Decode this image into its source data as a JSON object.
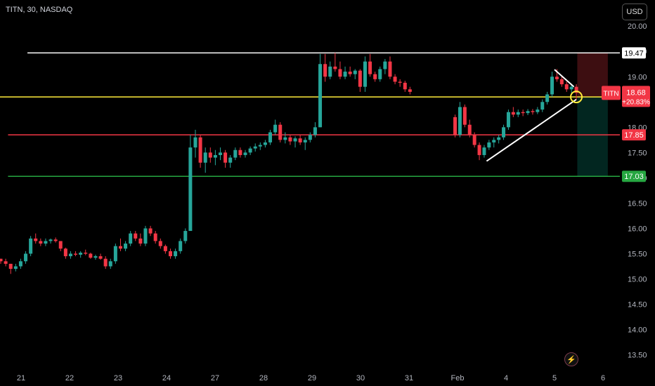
{
  "header": {
    "title": "TITN, 30, NASDAQ",
    "currency_button": "USD"
  },
  "chart_data": {
    "type": "candlestick",
    "symbol": "TITN",
    "interval": "30",
    "exchange": "NASDAQ",
    "ylim": [
      13.3,
      20.1
    ],
    "y_ticks": [
      "13.50",
      "14.00",
      "14.50",
      "15.00",
      "15.50",
      "16.00",
      "16.50",
      "17.00",
      "17.50",
      "18.00",
      "18.50",
      "19.00",
      "19.50",
      "20.00"
    ],
    "x_ticks": [
      "21",
      "22",
      "23",
      "24",
      "27",
      "28",
      "29",
      "30",
      "31",
      "Feb",
      "4",
      "5",
      "6"
    ],
    "last_price": {
      "symbol": "TITN",
      "value": "18.68",
      "change": "+20.83%",
      "price": 18.68,
      "color": "#f23645"
    },
    "horizontal_lines": [
      {
        "label": "19.47",
        "value": 19.47,
        "color": "#ffffff",
        "text_color": "#000000",
        "start_day": 0.45
      },
      {
        "label": "17.85",
        "value": 17.85,
        "color": "#f23645",
        "text_color": "#ffffff",
        "start_day": 0.05
      },
      {
        "label": "17.03",
        "value": 17.03,
        "color": "#26a641",
        "text_color": "#ffffff",
        "start_day": 0.05
      }
    ],
    "yellow_line": {
      "value": 18.6,
      "color": "#ffeb3b"
    },
    "risk_reward": {
      "start_day": 11.47,
      "end_day": 12.1,
      "entry": 18.6,
      "stop": 19.47,
      "target": 17.03
    },
    "trendlines": [
      {
        "d1": 9.6,
        "p1": 17.33,
        "d2": 11.45,
        "p2": 18.55,
        "color": "#ffffff"
      },
      {
        "d1": 11.0,
        "p1": 19.14,
        "d2": 11.4,
        "p2": 18.8,
        "color": "#ffffff"
      }
    ],
    "marker": {
      "day": 11.45,
      "price": 18.6,
      "color": "#ffeb3b"
    },
    "colors": {
      "up": "#26a69a",
      "down": "#f23645"
    },
    "candles": [
      [
        15.4,
        15.4,
        15.3,
        15.35
      ],
      [
        15.35,
        15.4,
        15.25,
        15.3
      ],
      [
        15.3,
        15.3,
        15.1,
        15.2
      ],
      [
        15.2,
        15.3,
        15.15,
        15.25
      ],
      [
        15.25,
        15.4,
        15.2,
        15.35
      ],
      [
        15.35,
        15.55,
        15.3,
        15.5
      ],
      [
        15.5,
        15.85,
        15.45,
        15.8
      ],
      [
        15.8,
        15.9,
        15.7,
        15.75
      ],
      [
        15.75,
        15.8,
        15.65,
        15.7
      ],
      [
        15.7,
        15.8,
        15.65,
        15.75
      ],
      [
        15.75,
        15.8,
        15.7,
        15.78
      ],
      [
        15.78,
        15.82,
        15.72,
        15.75
      ],
      [
        15.75,
        15.75,
        15.55,
        15.6
      ],
      [
        15.6,
        15.62,
        15.4,
        15.45
      ],
      [
        15.45,
        15.55,
        15.4,
        15.5
      ],
      [
        15.5,
        15.55,
        15.45,
        15.48
      ],
      [
        15.48,
        15.55,
        15.42,
        15.52
      ],
      [
        15.52,
        15.58,
        15.47,
        15.5
      ],
      [
        15.5,
        15.52,
        15.4,
        15.42
      ],
      [
        15.42,
        15.48,
        15.38,
        15.45
      ],
      [
        15.45,
        15.5,
        15.38,
        15.4
      ],
      [
        15.4,
        15.45,
        15.2,
        15.25
      ],
      [
        15.25,
        15.4,
        15.2,
        15.35
      ],
      [
        15.35,
        15.7,
        15.3,
        15.65
      ],
      [
        15.65,
        15.8,
        15.55,
        15.6
      ],
      [
        15.6,
        15.75,
        15.55,
        15.7
      ],
      [
        15.7,
        15.95,
        15.65,
        15.9
      ],
      [
        15.9,
        15.95,
        15.75,
        15.8
      ],
      [
        15.8,
        15.9,
        15.65,
        15.7
      ],
      [
        15.7,
        16.05,
        15.65,
        16.0
      ],
      [
        16.0,
        16.05,
        15.85,
        15.9
      ],
      [
        15.9,
        15.95,
        15.7,
        15.75
      ],
      [
        15.75,
        15.8,
        15.6,
        15.65
      ],
      [
        15.65,
        15.68,
        15.5,
        15.55
      ],
      [
        15.55,
        15.6,
        15.4,
        15.45
      ],
      [
        15.45,
        15.6,
        15.4,
        15.55
      ],
      [
        15.55,
        15.8,
        15.5,
        15.75
      ],
      [
        15.75,
        16.0,
        15.7,
        15.95
      ],
      [
        15.95,
        17.85,
        15.95,
        17.6
      ],
      [
        17.6,
        17.95,
        17.4,
        17.8
      ],
      [
        17.8,
        17.85,
        17.2,
        17.3
      ],
      [
        17.3,
        17.6,
        17.1,
        17.5
      ],
      [
        17.5,
        17.6,
        17.3,
        17.4
      ],
      [
        17.4,
        17.55,
        17.25,
        17.45
      ],
      [
        17.45,
        17.6,
        17.35,
        17.5
      ],
      [
        17.5,
        17.55,
        17.2,
        17.3
      ],
      [
        17.3,
        17.45,
        17.2,
        17.4
      ],
      [
        17.4,
        17.6,
        17.35,
        17.55
      ],
      [
        17.55,
        17.6,
        17.4,
        17.45
      ],
      [
        17.45,
        17.55,
        17.4,
        17.5
      ],
      [
        17.5,
        17.62,
        17.45,
        17.58
      ],
      [
        17.58,
        17.68,
        17.52,
        17.62
      ],
      [
        17.62,
        17.7,
        17.55,
        17.65
      ],
      [
        17.65,
        17.75,
        17.6,
        17.7
      ],
      [
        17.7,
        17.95,
        17.65,
        17.9
      ],
      [
        17.9,
        18.15,
        17.85,
        18.05
      ],
      [
        18.05,
        18.1,
        17.7,
        17.75
      ],
      [
        17.75,
        17.9,
        17.68,
        17.8
      ],
      [
        17.8,
        17.85,
        17.65,
        17.72
      ],
      [
        17.72,
        17.82,
        17.6,
        17.78
      ],
      [
        17.78,
        17.85,
        17.65,
        17.7
      ],
      [
        17.7,
        17.8,
        17.55,
        17.75
      ],
      [
        17.75,
        17.9,
        17.7,
        17.85
      ],
      [
        17.85,
        18.1,
        17.8,
        18.0
      ],
      [
        18.0,
        19.45,
        18.0,
        19.25
      ],
      [
        19.25,
        19.45,
        18.9,
        19.0
      ],
      [
        19.0,
        19.3,
        18.95,
        19.2
      ],
      [
        19.2,
        19.47,
        19.1,
        19.15
      ],
      [
        19.15,
        19.3,
        18.95,
        19.0
      ],
      [
        19.0,
        19.2,
        18.95,
        19.1
      ],
      [
        19.1,
        19.2,
        19.0,
        19.05
      ],
      [
        19.05,
        19.15,
        18.95,
        19.12
      ],
      [
        19.12,
        19.15,
        18.7,
        18.8
      ],
      [
        18.8,
        19.4,
        18.7,
        19.3
      ],
      [
        19.3,
        19.45,
        19.0,
        19.05
      ],
      [
        19.05,
        19.1,
        18.9,
        18.95
      ],
      [
        18.95,
        19.2,
        18.9,
        19.15
      ],
      [
        19.15,
        19.35,
        19.05,
        19.3
      ],
      [
        19.3,
        19.4,
        18.95,
        19.0
      ],
      [
        19.0,
        19.05,
        18.85,
        18.9
      ],
      [
        18.9,
        18.95,
        18.8,
        18.88
      ],
      [
        18.88,
        18.92,
        18.7,
        18.75
      ],
      [
        18.75,
        18.8,
        18.65,
        18.7
      ],
      [
        18.2,
        18.25,
        17.8,
        17.85
      ],
      [
        17.85,
        18.5,
        17.8,
        18.4
      ],
      [
        18.4,
        18.45,
        18.0,
        18.05
      ],
      [
        18.05,
        18.15,
        17.8,
        17.85
      ],
      [
        17.85,
        17.9,
        17.6,
        17.65
      ],
      [
        17.65,
        17.7,
        17.35,
        17.45
      ],
      [
        17.45,
        17.65,
        17.4,
        17.6
      ],
      [
        17.6,
        17.75,
        17.55,
        17.7
      ],
      [
        17.7,
        17.8,
        17.6,
        17.75
      ],
      [
        17.75,
        17.85,
        17.68,
        17.8
      ],
      [
        17.8,
        18.05,
        17.75,
        18.0
      ],
      [
        18.0,
        18.35,
        17.95,
        18.3
      ],
      [
        18.3,
        18.4,
        18.2,
        18.25
      ],
      [
        18.25,
        18.35,
        18.2,
        18.3
      ],
      [
        18.3,
        18.35,
        18.22,
        18.28
      ],
      [
        18.28,
        18.36,
        18.24,
        18.32
      ],
      [
        18.32,
        18.36,
        18.25,
        18.3
      ],
      [
        18.3,
        18.4,
        18.26,
        18.35
      ],
      [
        18.35,
        18.55,
        18.3,
        18.5
      ],
      [
        18.5,
        18.7,
        18.45,
        18.65
      ],
      [
        18.65,
        19.1,
        18.6,
        19.0
      ],
      [
        19.0,
        19.15,
        18.9,
        18.95
      ],
      [
        18.95,
        19.0,
        18.8,
        18.85
      ],
      [
        18.85,
        18.9,
        18.7,
        18.75
      ],
      [
        18.75,
        18.85,
        18.65,
        18.8
      ],
      [
        18.8,
        18.85,
        18.55,
        18.68
      ]
    ]
  }
}
